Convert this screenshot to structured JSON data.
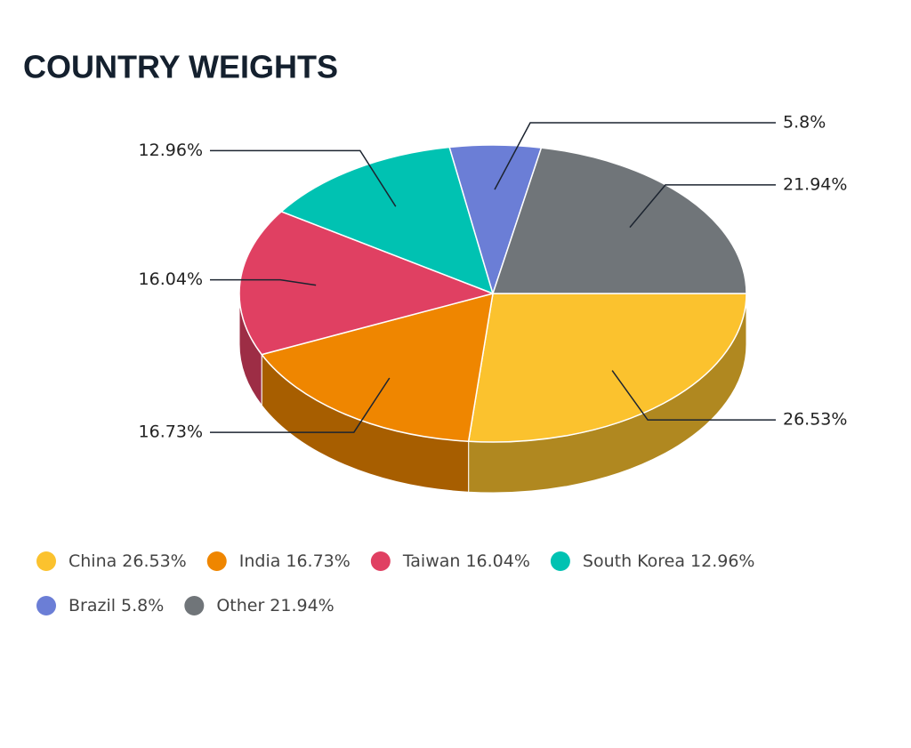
{
  "chart_data": {
    "type": "pie",
    "title": "COUNTRY WEIGHTS",
    "categories": [
      "China",
      "India",
      "Taiwan",
      "South Korea",
      "Brazil",
      "Other"
    ],
    "values": [
      26.53,
      16.73,
      16.04,
      12.96,
      5.8,
      21.94
    ],
    "value_labels": [
      "26.53%",
      "16.73%",
      "16.04%",
      "12.96%",
      "5.8%",
      "21.94%"
    ],
    "colors": [
      "#fbc22e",
      "#ef8600",
      "#e04062",
      "#00c2b2",
      "#6b7ed6",
      "#707579"
    ]
  }
}
